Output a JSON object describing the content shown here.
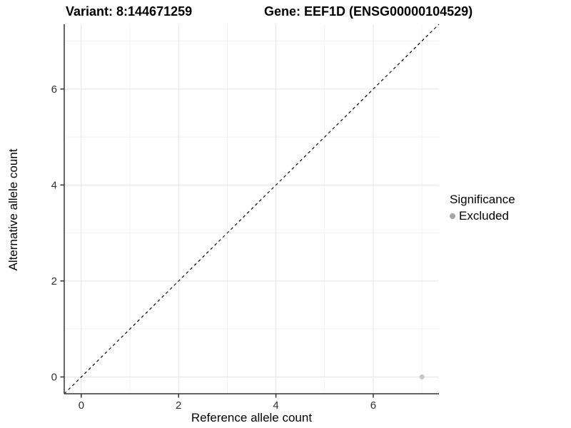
{
  "header": {
    "variant_title": "Variant: 8:144671259",
    "gene_title": "Gene: EEF1D (ENSG00000104529)"
  },
  "chart_data": {
    "type": "scatter",
    "xlabel": "Reference allele count",
    "ylabel": "Alternative allele count",
    "xlim": [
      -0.35,
      7.35
    ],
    "ylim": [
      -0.35,
      7.35
    ],
    "x_major_ticks": [
      0,
      2,
      4,
      6
    ],
    "y_major_ticks": [
      0,
      2,
      4,
      6
    ],
    "x_minor_gridlines": [
      1,
      3,
      5,
      7
    ],
    "y_minor_gridlines": [
      1,
      3,
      5,
      7
    ],
    "grid": true,
    "legend_position": "right",
    "reference_line": {
      "kind": "identity",
      "slope": 1,
      "intercept": 0,
      "style": "dashed",
      "color": "#000000"
    },
    "series": [
      {
        "name": "Excluded",
        "point_color": "#c6c6c6",
        "points": [
          {
            "x": 7,
            "y": 0
          }
        ]
      }
    ],
    "legend": {
      "title": "Significance",
      "items": [
        {
          "label": "Excluded",
          "color": "#a6a6a6"
        }
      ]
    }
  },
  "style_colors": {
    "axis_line": "#333333",
    "tick_text": "#303030",
    "grid_major": "#e5e5e5",
    "grid_minor": "#f2f2f2"
  }
}
